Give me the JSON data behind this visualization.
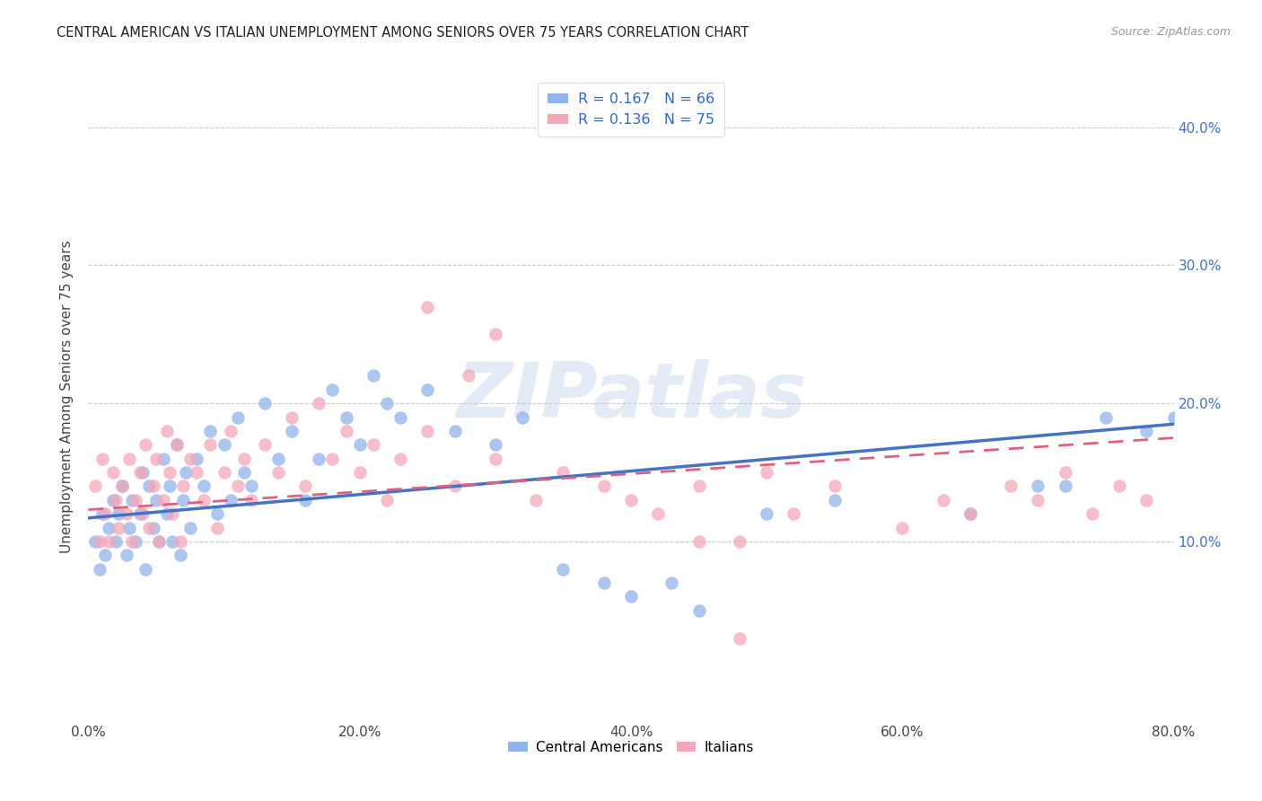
{
  "title": "CENTRAL AMERICAN VS ITALIAN UNEMPLOYMENT AMONG SENIORS OVER 75 YEARS CORRELATION CHART",
  "source": "Source: ZipAtlas.com",
  "ylabel": "Unemployment Among Seniors over 75 years",
  "xlim": [
    0.0,
    0.8
  ],
  "ylim": [
    -0.03,
    0.44
  ],
  "legend1_r": "R = 0.167",
  "legend1_n": "N = 66",
  "legend2_r": "R = 0.136",
  "legend2_n": "N = 75",
  "color_blue": "#92B4EC",
  "color_pink": "#F4A7B9",
  "line_blue": "#4472C4",
  "line_pink": "#E06080",
  "watermark_color": "#C8D8F0",
  "watermark_text": "ZIPatlas",
  "blue_x": [
    0.005,
    0.008,
    0.01,
    0.012,
    0.015,
    0.018,
    0.02,
    0.022,
    0.025,
    0.028,
    0.03,
    0.032,
    0.035,
    0.038,
    0.04,
    0.042,
    0.045,
    0.048,
    0.05,
    0.052,
    0.055,
    0.058,
    0.06,
    0.062,
    0.065,
    0.068,
    0.07,
    0.072,
    0.075,
    0.08,
    0.085,
    0.09,
    0.095,
    0.1,
    0.105,
    0.11,
    0.115,
    0.12,
    0.13,
    0.14,
    0.15,
    0.16,
    0.17,
    0.18,
    0.19,
    0.2,
    0.21,
    0.22,
    0.23,
    0.25,
    0.27,
    0.3,
    0.32,
    0.35,
    0.38,
    0.4,
    0.43,
    0.45,
    0.5,
    0.55,
    0.65,
    0.7,
    0.72,
    0.75,
    0.78,
    0.8
  ],
  "blue_y": [
    0.1,
    0.08,
    0.12,
    0.09,
    0.11,
    0.13,
    0.1,
    0.12,
    0.14,
    0.09,
    0.11,
    0.13,
    0.1,
    0.12,
    0.15,
    0.08,
    0.14,
    0.11,
    0.13,
    0.1,
    0.16,
    0.12,
    0.14,
    0.1,
    0.17,
    0.09,
    0.13,
    0.15,
    0.11,
    0.16,
    0.14,
    0.18,
    0.12,
    0.17,
    0.13,
    0.19,
    0.15,
    0.14,
    0.2,
    0.16,
    0.18,
    0.13,
    0.16,
    0.21,
    0.19,
    0.17,
    0.22,
    0.2,
    0.19,
    0.21,
    0.18,
    0.17,
    0.19,
    0.08,
    0.07,
    0.06,
    0.07,
    0.05,
    0.12,
    0.13,
    0.12,
    0.14,
    0.14,
    0.19,
    0.18,
    0.19
  ],
  "pink_x": [
    0.005,
    0.008,
    0.01,
    0.012,
    0.015,
    0.018,
    0.02,
    0.022,
    0.025,
    0.028,
    0.03,
    0.032,
    0.035,
    0.038,
    0.04,
    0.042,
    0.045,
    0.048,
    0.05,
    0.052,
    0.055,
    0.058,
    0.06,
    0.062,
    0.065,
    0.068,
    0.07,
    0.075,
    0.08,
    0.085,
    0.09,
    0.095,
    0.1,
    0.105,
    0.11,
    0.115,
    0.12,
    0.13,
    0.14,
    0.15,
    0.16,
    0.17,
    0.18,
    0.19,
    0.2,
    0.21,
    0.22,
    0.23,
    0.25,
    0.27,
    0.3,
    0.33,
    0.35,
    0.38,
    0.4,
    0.42,
    0.45,
    0.48,
    0.5,
    0.52,
    0.55,
    0.6,
    0.63,
    0.65,
    0.68,
    0.7,
    0.72,
    0.74,
    0.76,
    0.78,
    0.3,
    0.25,
    0.28,
    0.45,
    0.48
  ],
  "pink_y": [
    0.14,
    0.1,
    0.16,
    0.12,
    0.1,
    0.15,
    0.13,
    0.11,
    0.14,
    0.12,
    0.16,
    0.1,
    0.13,
    0.15,
    0.12,
    0.17,
    0.11,
    0.14,
    0.16,
    0.1,
    0.13,
    0.18,
    0.15,
    0.12,
    0.17,
    0.1,
    0.14,
    0.16,
    0.15,
    0.13,
    0.17,
    0.11,
    0.15,
    0.18,
    0.14,
    0.16,
    0.13,
    0.17,
    0.15,
    0.19,
    0.14,
    0.2,
    0.16,
    0.18,
    0.15,
    0.17,
    0.13,
    0.16,
    0.18,
    0.14,
    0.16,
    0.13,
    0.15,
    0.14,
    0.13,
    0.12,
    0.14,
    0.1,
    0.15,
    0.12,
    0.14,
    0.11,
    0.13,
    0.12,
    0.14,
    0.13,
    0.15,
    0.12,
    0.14,
    0.13,
    0.25,
    0.27,
    0.22,
    0.1,
    0.03
  ],
  "blue_line_x": [
    0.0,
    0.8
  ],
  "blue_line_y": [
    0.117,
    0.185
  ],
  "pink_line_x": [
    0.0,
    0.8
  ],
  "pink_line_y": [
    0.123,
    0.175
  ]
}
